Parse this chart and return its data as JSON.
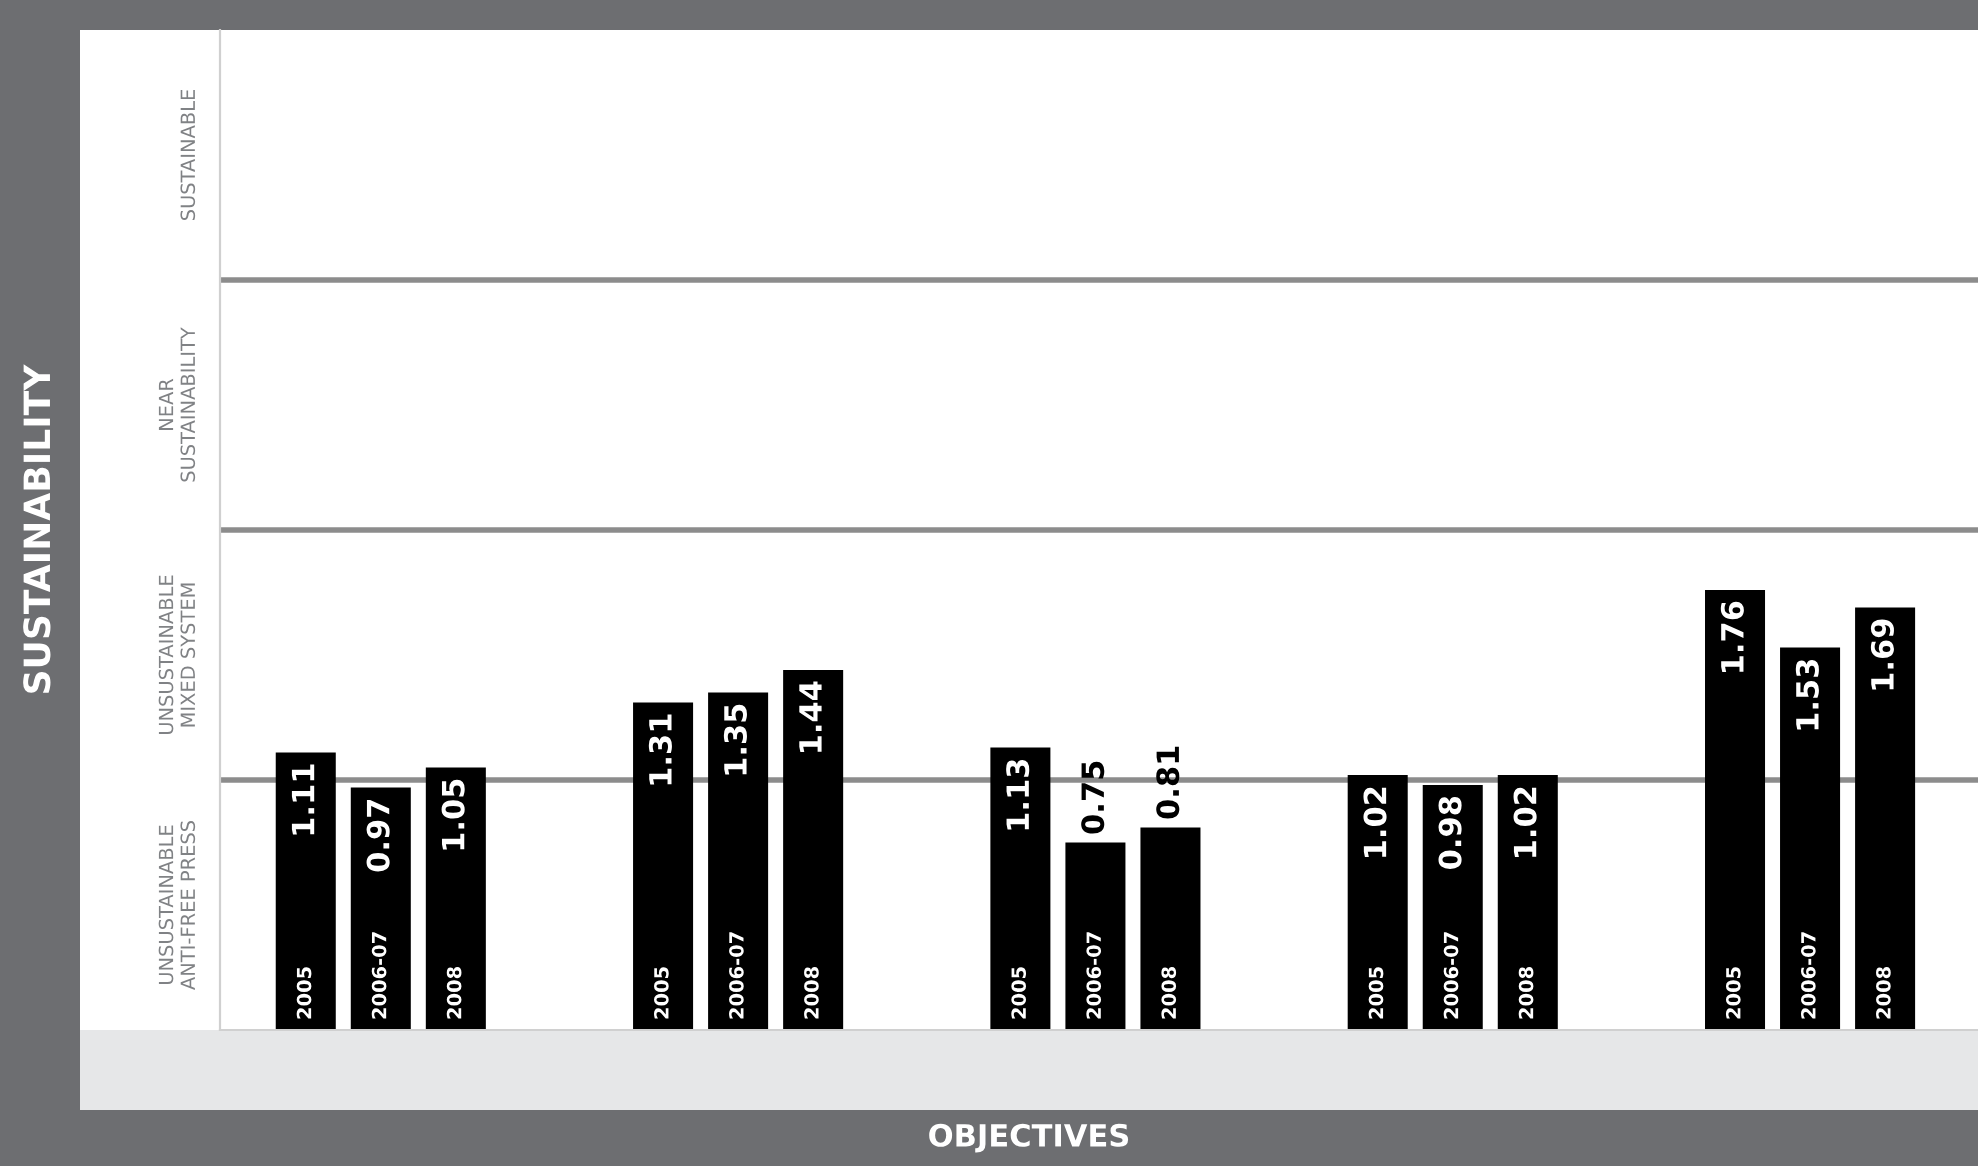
{
  "chart_data": {
    "type": "bar",
    "xlabel": "OBJECTIVES",
    "ylabel": "SUSTAINABILITY",
    "categories": [
      null,
      null,
      null,
      null,
      null
    ],
    "series": [
      {
        "name": "2005",
        "color": "#000000",
        "values": [
          1.11,
          1.31,
          1.13,
          1.02,
          1.76
        ]
      },
      {
        "name": "2006-07",
        "color": "#000000",
        "values": [
          0.97,
          1.35,
          0.75,
          0.98,
          1.53
        ]
      },
      {
        "name": "2008",
        "color": "#000000",
        "values": [
          1.05,
          1.44,
          0.81,
          1.02,
          1.69
        ]
      }
    ],
    "ylim": [
      0,
      4
    ],
    "annotations": [
      "UNSUSTAINABLE\nANTI-FREE PRESS",
      "UNSUSTAINABLE\nMIXED SYSTEM",
      "NEAR\nSUSTAINABILITY",
      "SUSTAINABLE"
    ],
    "ref_lines": [
      {
        "axis": "y",
        "value": 1,
        "label": null,
        "color": "#8c8c8c"
      },
      {
        "axis": "y",
        "value": 2,
        "label": null,
        "color": "#8c8c8c"
      },
      {
        "axis": "y",
        "value": 3,
        "label": null,
        "color": "#8c8c8c"
      }
    ],
    "data_labels": true,
    "grid": false,
    "legend": false
  }
}
